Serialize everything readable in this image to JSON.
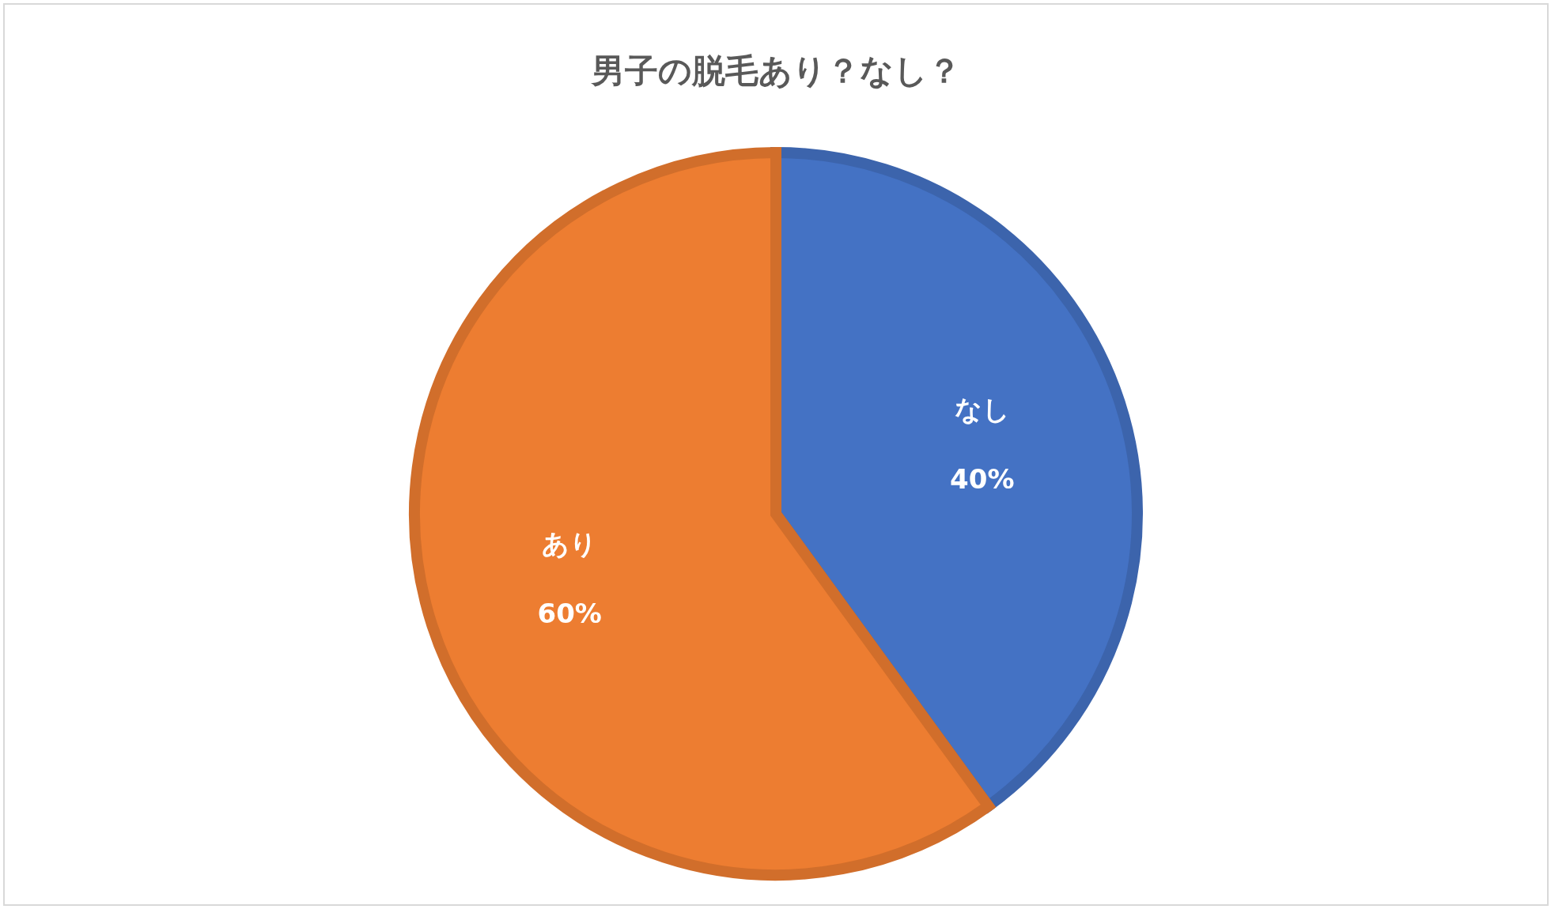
{
  "chart_data": {
    "type": "pie",
    "title": "男子の脱毛あり？なし？",
    "categories": [
      "なし",
      "あり"
    ],
    "values": [
      40,
      60
    ],
    "colors": [
      "#4472c4",
      "#ed7d31"
    ],
    "value_labels": [
      "40%",
      "60%"
    ],
    "legend": false
  }
}
